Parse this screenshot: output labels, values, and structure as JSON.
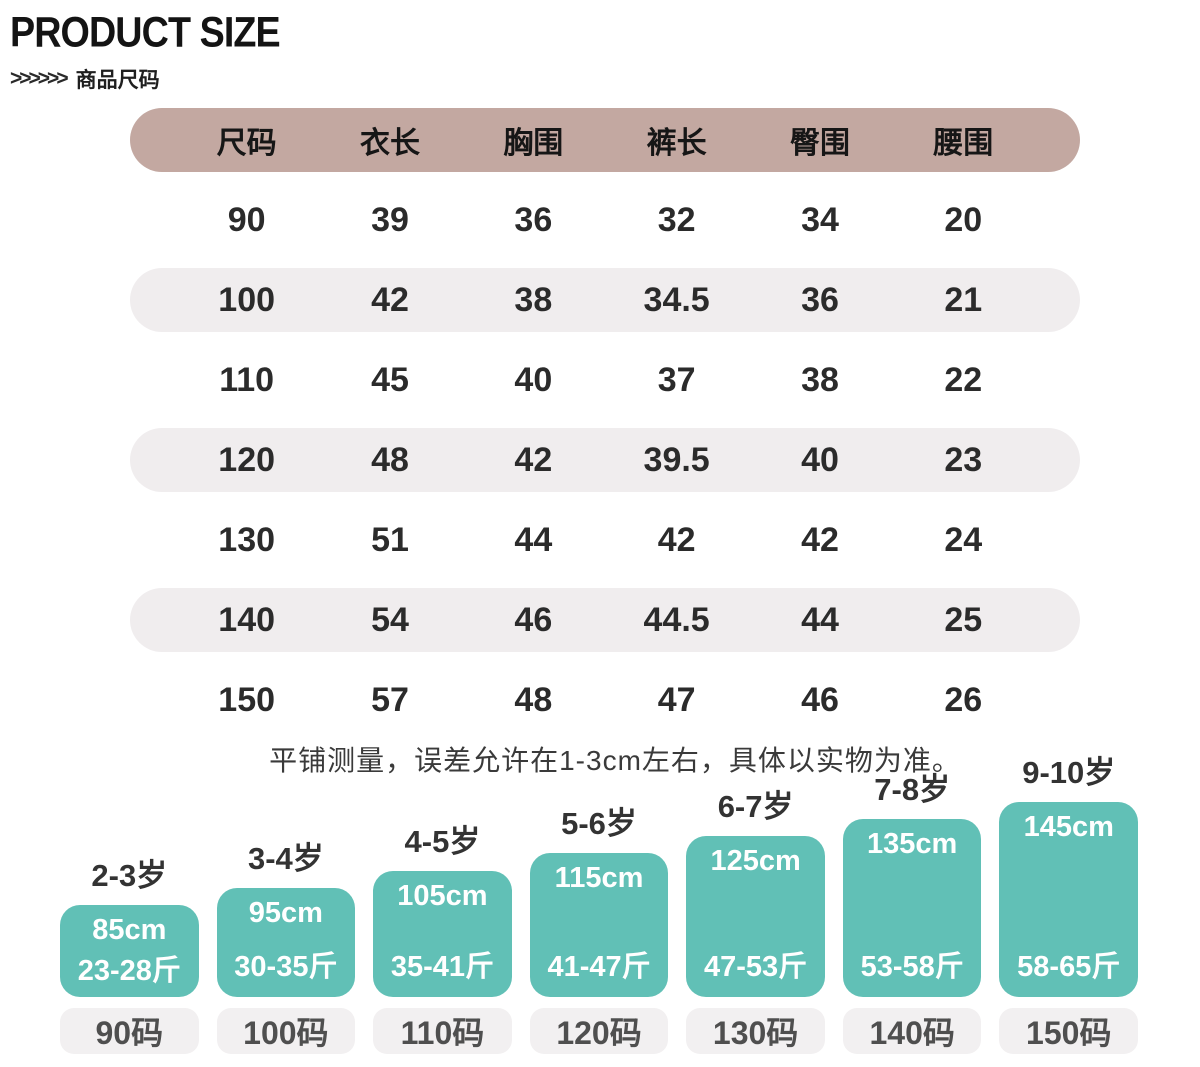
{
  "header": {
    "title": "PRODUCT SIZE",
    "subtitle_arrows": ">>>>>>",
    "subtitle": "商品尺码"
  },
  "table": {
    "columns": [
      "尺码",
      "衣长",
      "胸围",
      "裤长",
      "臀围",
      "腰围"
    ],
    "rows": [
      [
        "90",
        "39",
        "36",
        "32",
        "34",
        "20"
      ],
      [
        "100",
        "42",
        "38",
        "34.5",
        "36",
        "21"
      ],
      [
        "110",
        "45",
        "40",
        "37",
        "38",
        "22"
      ],
      [
        "120",
        "48",
        "42",
        "39.5",
        "40",
        "23"
      ],
      [
        "130",
        "51",
        "44",
        "42",
        "42",
        "24"
      ],
      [
        "140",
        "54",
        "46",
        "44.5",
        "44",
        "25"
      ],
      [
        "150",
        "57",
        "48",
        "47",
        "46",
        "26"
      ]
    ]
  },
  "note": "平铺测量，误差允许在1-3cm左右，具体以实物为准。",
  "chart_data": {
    "type": "bar",
    "categories": [
      "2-3岁",
      "3-4岁",
      "4-5岁",
      "5-6岁",
      "6-7岁",
      "7-8岁",
      "9-10岁"
    ],
    "series": [
      {
        "name": "height_cm",
        "values": [
          85,
          95,
          105,
          115,
          125,
          135,
          145
        ]
      },
      {
        "name": "weight_jin",
        "values": [
          "23-28斤",
          "30-35斤",
          "35-41斤",
          "41-47斤",
          "47-53斤",
          "53-58斤",
          "58-65斤"
        ]
      }
    ],
    "bar_value_labels": [
      "85cm",
      "95cm",
      "105cm",
      "115cm",
      "125cm",
      "135cm",
      "145cm"
    ],
    "size_codes": [
      "90码",
      "100码",
      "110码",
      "120码",
      "130码",
      "140码",
      "150码"
    ],
    "legend_position": "none",
    "grid": false
  },
  "colors": {
    "table_header_bg": "#c3a8a1",
    "row_alt_bg": "#f0edee",
    "bar": "#61c0b6",
    "code_pill_bg": "#f2f0f1"
  }
}
